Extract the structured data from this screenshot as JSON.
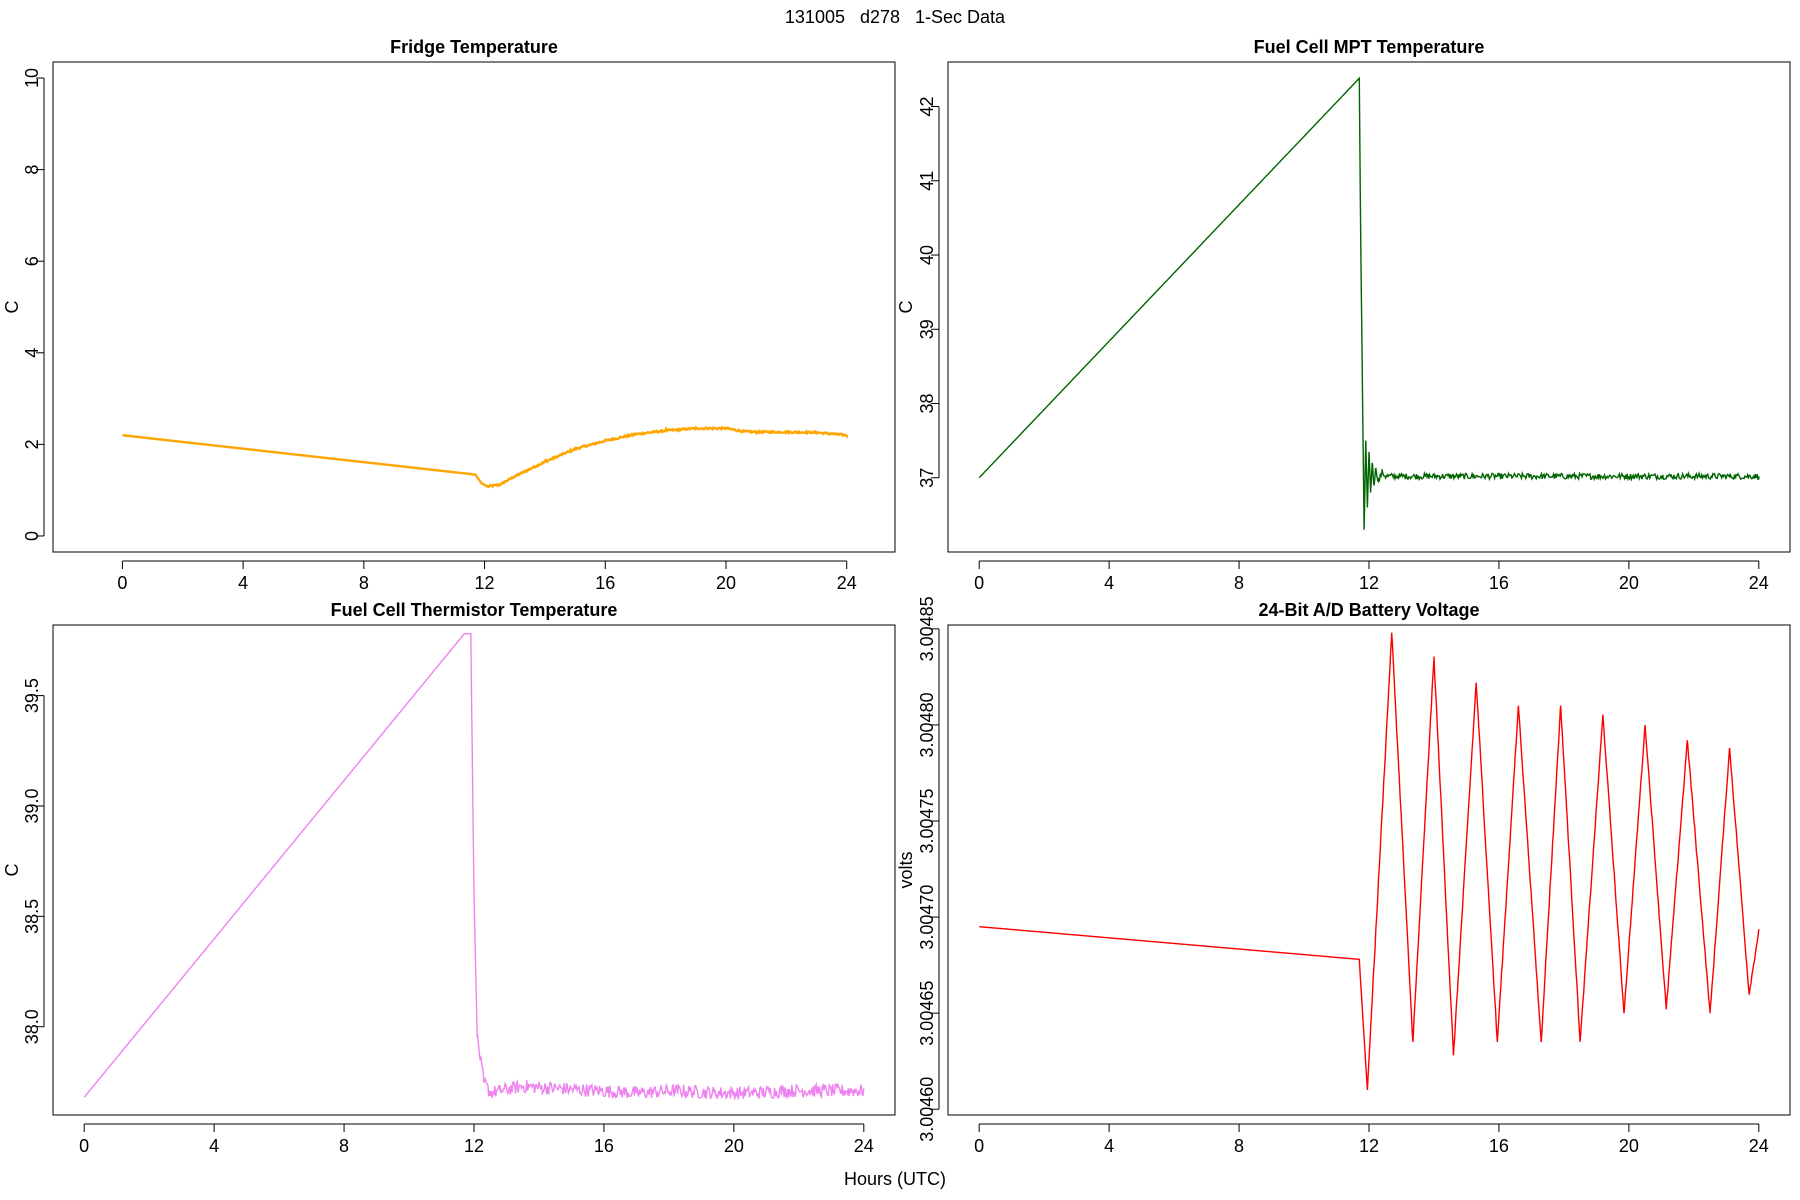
{
  "figure": {
    "suptitle": "131005   d278   1-Sec Data",
    "xlabel": "Hours (UTC)"
  },
  "chart_data": [
    {
      "type": "line",
      "title": "Fridge Temperature",
      "xlabel": "Hours (UTC)",
      "ylabel": "C",
      "xlim": [
        -2.3,
        25.6
      ],
      "ylim": [
        -0.35,
        10.35
      ],
      "xticks": [
        0,
        4,
        8,
        12,
        16,
        20,
        24
      ],
      "xtick_labels": [
        "0",
        "4",
        "8",
        "12",
        "16",
        "20",
        "24"
      ],
      "yticks": [
        0,
        2,
        4,
        6,
        8,
        10
      ],
      "ytick_labels": [
        "0",
        "2",
        "4",
        "6",
        "8",
        "10"
      ],
      "color": "#FFA500",
      "series": [
        {
          "name": "Fridge Temperature",
          "x": [
            0,
            11.7,
            11.9,
            12.1,
            12.5,
            13,
            14,
            15,
            16,
            17,
            18,
            19,
            20,
            20.6,
            21,
            22,
            23,
            24
          ],
          "y": [
            2.2,
            1.34,
            1.15,
            1.08,
            1.12,
            1.3,
            1.62,
            1.9,
            2.08,
            2.22,
            2.3,
            2.35,
            2.35,
            2.28,
            2.27,
            2.27,
            2.26,
            2.2
          ],
          "noise": 0.02
        }
      ]
    },
    {
      "type": "line",
      "title": "Fuel Cell MPT Temperature",
      "xlabel": "Hours (UTC)",
      "ylabel": "C",
      "xlim": [
        -0.96,
        24.96
      ],
      "ylim": [
        36.0,
        42.6
      ],
      "xticks": [
        0,
        4,
        8,
        12,
        16,
        20,
        24
      ],
      "xtick_labels": [
        "0",
        "4",
        "8",
        "12",
        "16",
        "20",
        "24"
      ],
      "yticks": [
        37,
        38,
        39,
        40,
        41,
        42
      ],
      "ytick_labels": [
        "37",
        "38",
        "39",
        "40",
        "41",
        "42"
      ],
      "color": "#006400",
      "series": [
        {
          "name": "Fuel Cell MPT Temperature",
          "x": [
            0,
            11.7,
            11.75,
            11.85,
            11.9,
            11.95,
            12.0,
            12.05,
            12.1,
            12.15,
            12.2,
            12.3,
            12.4,
            12.5,
            13,
            16,
            20,
            24
          ],
          "y": [
            37.0,
            42.38,
            40.0,
            36.3,
            37.5,
            36.6,
            37.35,
            36.8,
            37.2,
            36.9,
            37.12,
            36.95,
            37.08,
            37.02,
            37.02,
            37.02,
            37.02,
            37.02
          ],
          "noise": 0.04
        }
      ]
    },
    {
      "type": "line",
      "title": "Fuel Cell Thermistor Temperature",
      "xlabel": "Hours (UTC)",
      "ylabel": "C",
      "xlim": [
        -0.96,
        24.96
      ],
      "ylim": [
        37.6,
        39.82
      ],
      "xticks": [
        0,
        4,
        8,
        12,
        16,
        20,
        24
      ],
      "xtick_labels": [
        "0",
        "4",
        "8",
        "12",
        "16",
        "20",
        "24"
      ],
      "yticks": [
        38.0,
        38.5,
        39.0,
        39.5
      ],
      "ytick_labels": [
        "38.0",
        "38.5",
        "39.0",
        "39.5"
      ],
      "color": "#EE82EE",
      "series": [
        {
          "name": "Fuel Cell Thermistor Temperature",
          "x": [
            0,
            11.7,
            11.9,
            12.0,
            12.1,
            12.3,
            12.5,
            12.8,
            13.5,
            14.6,
            15.8,
            17.0,
            18.2,
            19.4,
            20.6,
            21.8,
            23.0,
            24.0
          ],
          "y": [
            37.68,
            39.78,
            39.78,
            38.6,
            37.95,
            37.75,
            37.7,
            37.71,
            37.73,
            37.72,
            37.71,
            37.7,
            37.71,
            37.7,
            37.7,
            37.71,
            37.71,
            37.71
          ],
          "noise": 0.03
        }
      ]
    },
    {
      "type": "line",
      "title": "24-Bit A/D Battery Voltage",
      "xlabel": "Hours (UTC)",
      "ylabel": "volts",
      "xlim": [
        -0.96,
        24.96
      ],
      "ylim": [
        3.004597,
        3.004852
      ],
      "xticks": [
        0,
        4,
        8,
        12,
        16,
        20,
        24
      ],
      "xtick_labels": [
        "0",
        "4",
        "8",
        "12",
        "16",
        "20",
        "24"
      ],
      "yticks": [
        3.0046,
        3.00465,
        3.0047,
        3.00475,
        3.0048,
        3.00485
      ],
      "ytick_labels": [
        "3.00460",
        "3.00465",
        "3.00470",
        "3.00475",
        "3.00480",
        "3.00485"
      ],
      "color": "#FF0000",
      "series": [
        {
          "name": "24-Bit A/D Battery Voltage",
          "x": [
            0,
            11.7,
            11.95,
            12.7,
            13.35,
            14.0,
            14.6,
            15.3,
            15.95,
            16.6,
            17.3,
            17.9,
            18.5,
            19.2,
            19.85,
            20.5,
            21.15,
            21.8,
            22.5,
            23.1,
            23.7,
            24.0
          ],
          "y": [
            3.004695,
            3.004678,
            3.00461,
            3.004848,
            3.004635,
            3.004835,
            3.004628,
            3.004822,
            3.004635,
            3.00481,
            3.004635,
            3.00481,
            3.004635,
            3.004805,
            3.00465,
            3.0048,
            3.004652,
            3.004792,
            3.00465,
            3.004788,
            3.00466,
            3.004693
          ],
          "noise": 1.2e-06
        }
      ]
    }
  ]
}
